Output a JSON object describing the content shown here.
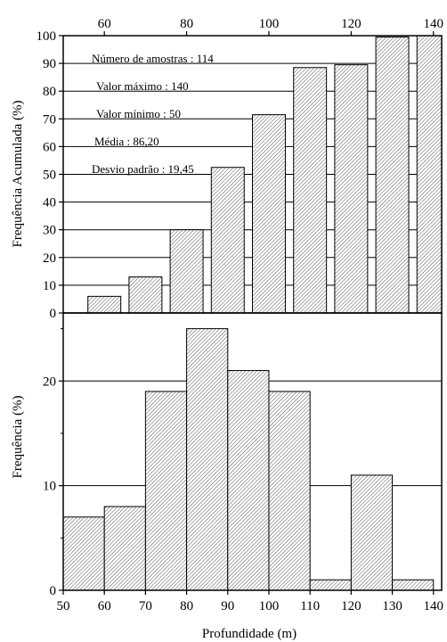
{
  "chart_data": [
    {
      "type": "bar",
      "ylabel": "Frequência Acumulada (%)",
      "xlim": [
        50,
        142
      ],
      "ylim": [
        0,
        100
      ],
      "x_ticks": [
        60,
        80,
        100,
        120,
        140
      ],
      "y_ticks": [
        0,
        10,
        20,
        30,
        40,
        50,
        60,
        70,
        80,
        90,
        100
      ],
      "bars": [
        {
          "x0": 56,
          "x1": 64,
          "value": 6
        },
        {
          "x0": 66,
          "x1": 74,
          "value": 13
        },
        {
          "x0": 76,
          "x1": 84,
          "value": 30
        },
        {
          "x0": 86,
          "x1": 94,
          "value": 52.5
        },
        {
          "x0": 96,
          "x1": 104,
          "value": 71.5
        },
        {
          "x0": 106,
          "x1": 114,
          "value": 88.5
        },
        {
          "x0": 116,
          "x1": 124,
          "value": 89.5
        },
        {
          "x0": 126,
          "x1": 134,
          "value": 99.5
        },
        {
          "x0": 136,
          "x1": 144,
          "value": 100
        }
      ],
      "annotations": [
        "Número de amostras : 114",
        "Valor máximo : 140",
        "Valor mínimo : 50",
        "Média : 86,20",
        "Desvio padrão : 19,45"
      ]
    },
    {
      "type": "bar",
      "xlabel": "Profundidade (m)",
      "ylabel": "Frequência (%)",
      "xlim": [
        50,
        142
      ],
      "ylim": [
        0,
        26.5
      ],
      "x_ticks": [
        50,
        60,
        70,
        80,
        90,
        100,
        110,
        120,
        130,
        140
      ],
      "y_ticks": [
        0,
        10,
        20
      ],
      "bars": [
        {
          "x0": 50,
          "x1": 60,
          "value": 7
        },
        {
          "x0": 60,
          "x1": 70,
          "value": 8
        },
        {
          "x0": 70,
          "x1": 80,
          "value": 19
        },
        {
          "x0": 80,
          "x1": 90,
          "value": 25
        },
        {
          "x0": 90,
          "x1": 100,
          "value": 21
        },
        {
          "x0": 100,
          "x1": 110,
          "value": 19
        },
        {
          "x0": 110,
          "x1": 120,
          "value": 1
        },
        {
          "x0": 120,
          "x1": 130,
          "value": 11
        },
        {
          "x0": 130,
          "x1": 140,
          "value": 1
        }
      ]
    }
  ]
}
